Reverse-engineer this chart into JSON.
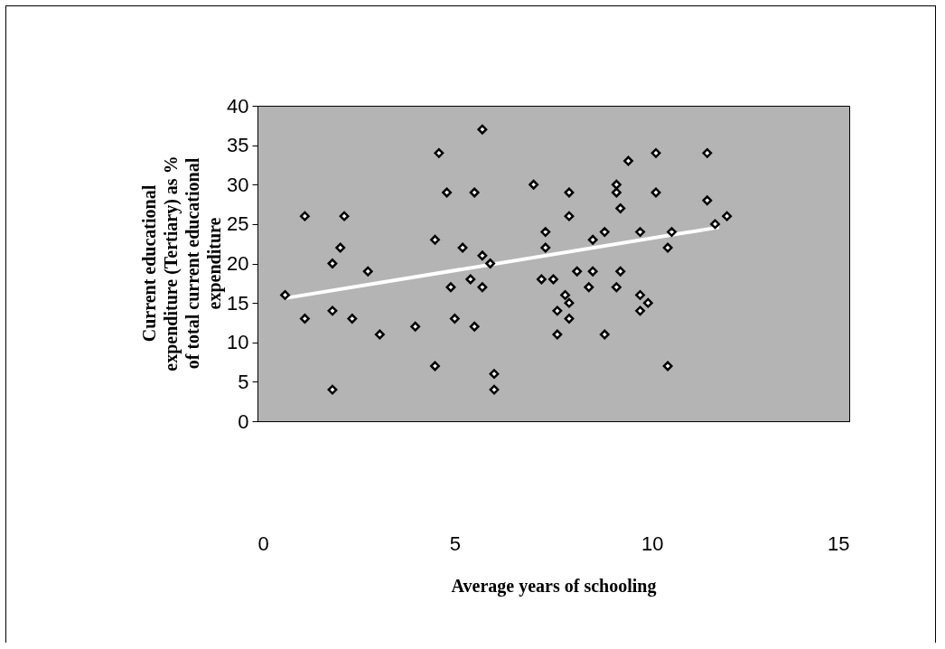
{
  "chart_data": {
    "type": "scatter",
    "xlabel": "Average years of schooling",
    "ylabel": "Current educational\nexpenditure (Tertiary) as %\nof total current educational\nexpenditure",
    "xlim": [
      0,
      15
    ],
    "ylim": [
      0,
      40
    ],
    "xticks": [
      0,
      5,
      10,
      15
    ],
    "yticks": [
      0,
      5,
      10,
      15,
      20,
      25,
      30,
      35,
      40
    ],
    "grid": false,
    "series": [
      {
        "color": "#000000",
        "marker": "diamond",
        "x": [
          0.7,
          1.2,
          1.2,
          1.9,
          1.9,
          1.9,
          2.1,
          2.2,
          2.4,
          2.8,
          3.1,
          4.0,
          4.5,
          4.5,
          4.6,
          4.8,
          4.9,
          5.0,
          5.2,
          5.5,
          5.5,
          5.4,
          5.7,
          5.7,
          5.7,
          6.0,
          6.0,
          5.9,
          7.0,
          7.2,
          7.3,
          7.3,
          7.5,
          7.6,
          7.6,
          7.9,
          7.9,
          7.8,
          7.9,
          7.9,
          8.1,
          8.4,
          8.5,
          8.5,
          8.8,
          8.8,
          9.1,
          9.1,
          9.2,
          9.2,
          9.1,
          9.4,
          9.7,
          9.7,
          9.7,
          9.9,
          10.1,
          10.1,
          10.4,
          10.5,
          10.4,
          11.4,
          11.4,
          11.6,
          11.9
        ],
        "values": [
          16,
          26,
          13,
          20,
          14,
          4,
          22,
          26,
          13,
          19,
          11,
          12,
          23,
          7,
          34,
          29,
          17,
          13,
          22,
          29,
          12,
          18,
          37,
          21,
          17,
          6,
          4,
          20,
          30,
          18,
          22,
          24,
          18,
          14,
          11,
          29,
          26,
          16,
          15,
          13,
          19,
          17,
          19,
          23,
          24,
          11,
          30,
          29,
          27,
          19,
          17,
          33,
          24,
          16,
          14,
          15,
          34,
          29,
          22,
          24,
          7,
          34,
          28,
          25,
          26
        ]
      },
      {
        "type": "line",
        "color": "#ffffff",
        "x": [
          0.7,
          11.7
        ],
        "values": [
          15.6,
          24.6
        ]
      }
    ]
  }
}
